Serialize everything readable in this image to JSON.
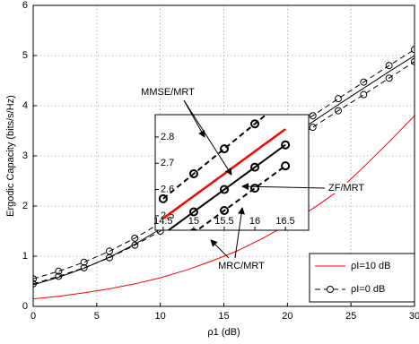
{
  "chart_data": [
    {
      "type": "line",
      "x_label": "ρ1 (dB)",
      "y_label": "Ergodic Capacity (bits/s/Hz)",
      "x": [
        0,
        2,
        4,
        6,
        8,
        10,
        12,
        14,
        16,
        18,
        20,
        22,
        24,
        26,
        28,
        30
      ],
      "series": [
        {
          "name": "ρI=10 dB",
          "color": "#ff0000",
          "style": "solid",
          "values": [
            0.15,
            0.2,
            0.27,
            0.35,
            0.45,
            0.57,
            0.72,
            0.9,
            1.1,
            1.35,
            1.63,
            1.95,
            2.3,
            2.78,
            3.28,
            3.8
          ]
        },
        {
          "name": "ρI=0 dB",
          "color": "#000000",
          "style": "dashed-circle",
          "values": [
            0.55,
            0.7,
            0.88,
            1.1,
            1.36,
            1.66,
            2.0,
            2.4,
            2.8,
            3.15,
            3.48,
            3.8,
            4.14,
            4.47,
            4.8,
            5.12
          ]
        },
        {
          "color": "#000000",
          "style": "solid",
          "values": [
            0.43,
            0.58,
            0.76,
            0.98,
            1.24,
            1.54,
            1.88,
            2.28,
            2.68,
            3.03,
            3.36,
            3.68,
            4.02,
            4.35,
            4.68,
            5.0
          ]
        },
        {
          "color": "#000000",
          "style": "dashed-circle",
          "values": [
            0.45,
            0.6,
            0.77,
            0.97,
            1.22,
            1.5,
            1.82,
            2.2,
            2.58,
            2.92,
            3.25,
            3.57,
            3.9,
            4.22,
            4.55,
            4.88
          ]
        }
      ],
      "xlim": [
        0,
        30
      ],
      "xticks": [
        0,
        5,
        10,
        15,
        20,
        25,
        30
      ],
      "ylim": [
        0,
        6
      ],
      "yticks": [
        0,
        1,
        2,
        3,
        4,
        5,
        6
      ],
      "grid": true,
      "legend": "lower right",
      "annotations": [
        "MMSE/MRT",
        "ZF/MRT",
        "MRC/MRT"
      ]
    },
    {
      "type": "line",
      "x": [
        14.5,
        15,
        15.5,
        16,
        16.5
      ],
      "series": [
        {
          "color": "#000000",
          "style": "dashed-circle",
          "values": [
            2.565,
            2.66,
            2.755,
            2.85,
            2.945
          ]
        },
        {
          "color": "#ff0000",
          "style": "thick",
          "values": [
            2.49,
            2.575,
            2.66,
            2.745,
            2.83
          ]
        },
        {
          "color": "#000000",
          "style": "solid-circle",
          "values": [
            2.43,
            2.515,
            2.6,
            2.685,
            2.77
          ]
        },
        {
          "color": "#000000",
          "style": "dashed-circle",
          "values": [
            2.35,
            2.435,
            2.52,
            2.605,
            2.69
          ]
        }
      ],
      "xlim": [
        14.37,
        16.88
      ],
      "xticks": [
        14.5,
        15,
        15.5,
        16,
        16.5
      ],
      "ylim": [
        2.445,
        2.885
      ],
      "yticks": [
        2.5,
        2.6,
        2.7,
        2.8
      ],
      "grid": false
    }
  ]
}
